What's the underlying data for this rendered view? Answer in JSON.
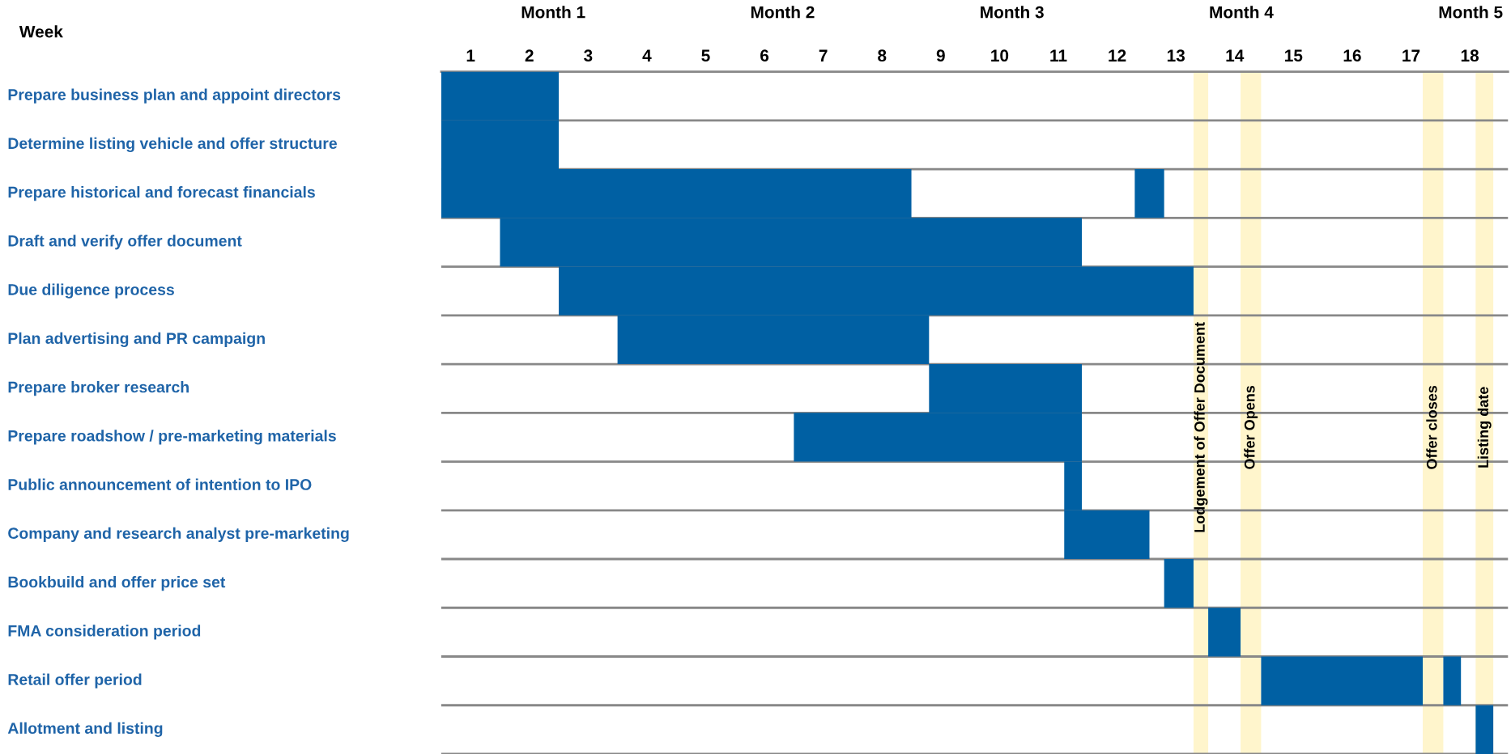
{
  "chart_data": {
    "type": "bar",
    "orientation": "horizontal",
    "xlabel": "Week",
    "categories": [
      "Prepare business plan and appoint directors",
      "Determine listing vehicle and offer structure",
      "Prepare historical and forecast financials",
      "Draft and verify offer document",
      "Due diligence process",
      "Plan advertising and PR campaign",
      "Prepare broker research",
      "Prepare roadshow / pre-marketing materials",
      "Public announcement of intention to IPO",
      "Company and research analyst pre-marketing",
      "Bookbuild and offer price set",
      "FMA consideration period",
      "Retail offer period",
      "Allotment and listing"
    ],
    "series": [
      {
        "color": "#0060a3",
        "base": [
          0.5,
          0.5,
          0.5,
          1.5,
          2.5,
          3.5,
          8.8,
          6.5,
          11.1,
          11.1,
          12.8,
          13.55,
          14.45,
          18.1
        ],
        "values": [
          2.0,
          2.0,
          8.0,
          9.9,
          10.8,
          5.3,
          2.6,
          4.9,
          0.3,
          1.45,
          0.5,
          0.55,
          2.75,
          0.3
        ]
      },
      {
        "color": "#0060a3",
        "base": [
          null,
          null,
          12.3,
          null,
          null,
          null,
          null,
          null,
          null,
          null,
          null,
          null,
          17.55,
          null
        ],
        "values": [
          null,
          null,
          0.5,
          null,
          null,
          null,
          null,
          null,
          null,
          null,
          null,
          null,
          0.3,
          null
        ]
      }
    ],
    "xlim": [
      0.5,
      18.65
    ],
    "xticks": [
      1,
      2,
      3,
      4,
      5,
      6,
      7,
      8,
      9,
      10,
      11,
      12,
      13,
      14,
      15,
      16,
      17,
      18
    ],
    "annotations": [
      "Month 1",
      "Month 2",
      "Month 3",
      "Month 4",
      "Month 5"
    ],
    "bands": [
      {
        "axis": "x",
        "from": 13.3,
        "to": 13.55,
        "label": "Lodgement of Offer Document",
        "color": "#fff5cc"
      },
      {
        "axis": "x",
        "from": 14.1,
        "to": 14.45,
        "label": "Offer Opens",
        "color": "#fff5cc"
      },
      {
        "axis": "x",
        "from": 17.2,
        "to": 17.55,
        "label": "Offer closes",
        "color": "#fff5cc"
      },
      {
        "axis": "x",
        "from": 18.1,
        "to": 18.4,
        "label": "Listing date",
        "color": "#fff5cc"
      }
    ],
    "grid": "y",
    "legend": false
  }
}
